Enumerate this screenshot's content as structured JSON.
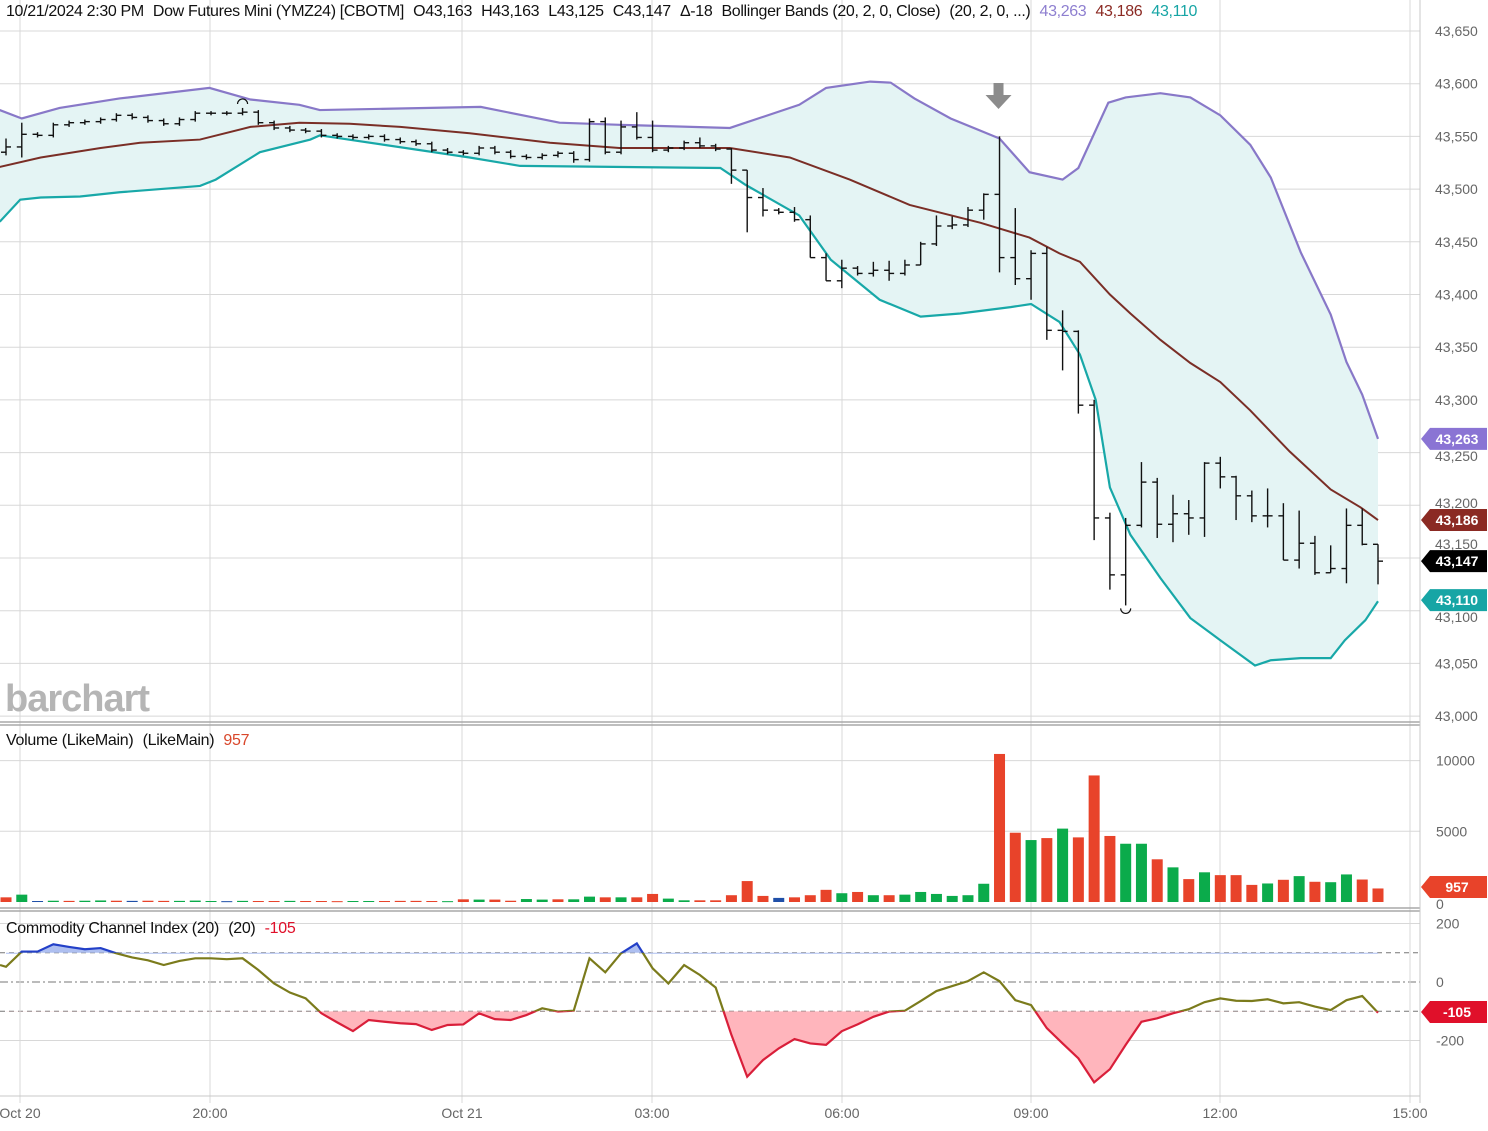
{
  "header": {
    "datetime": "10/21/2024 2:30 PM",
    "instrument": "Dow Futures Mini (YMZ24) [CBOTM]",
    "open": "O43,163",
    "high": "H43,163",
    "low": "L43,125",
    "close": "C43,147",
    "change": "Δ-18",
    "study": "Bollinger Bands (20, 2, 0, Close)",
    "study_params": "(20, 2, 0, ...)",
    "upper_value": "43,263",
    "middle_value": "43,186",
    "lower_value": "43,110"
  },
  "watermark": "barchart",
  "volume_pane": {
    "title": "Volume (LikeMain)",
    "params": "(LikeMain)",
    "value": "957"
  },
  "cci_pane": {
    "title": "Commodity Channel Index (20)",
    "params": "(20)",
    "value": "-105"
  },
  "colors": {
    "upper_band": "#8878c8",
    "middle_band": "#7a2e26",
    "lower_band": "#18a8a8",
    "band_fill": "#e4f4f4",
    "bars": "#111111",
    "volume_up": "#0bab4b",
    "volume_down": "#e8432a",
    "volume_unchanged": "#1f4fa8",
    "cci_line": "#7b7b1c",
    "cci_overbought": "#2340c8",
    "cci_oversold": "#d91f3a",
    "cci_oversold_fill": "#ffb5bc",
    "cci_overbought_fill": "#aebff0"
  },
  "chart_data": [
    {
      "type": "ohlc",
      "title": "Dow Futures Mini (YMZ24) [CBOTM]",
      "interval": "15 min",
      "ylim": [
        43000,
        43650
      ],
      "y_ticks": [
        "43,000",
        "43,050",
        "43,100",
        "43,150",
        "43,200",
        "43,250",
        "43,300",
        "43,350",
        "43,400",
        "43,450",
        "43,500",
        "43,550",
        "43,600",
        "43,650"
      ],
      "x_ticks": [
        "Oct 20",
        "20:00",
        "Oct 21",
        "03:00",
        "06:00",
        "09:00",
        "12:00",
        "15:00"
      ],
      "grid": true,
      "close": [
        43540,
        43552,
        43551,
        43561,
        43563,
        43564,
        43566,
        43570,
        43568,
        43565,
        43562,
        43566,
        43572,
        43572,
        43572,
        43573,
        43563,
        43558,
        43556,
        43555,
        43551,
        43550,
        43549,
        43550,
        43547,
        43545,
        43543,
        43537,
        43535,
        43534,
        43539,
        43535,
        43531,
        43530,
        43532,
        43534,
        43528,
        43564,
        43535,
        43559,
        43549,
        43537,
        43539,
        43544,
        43541,
        43538,
        43518,
        43492,
        43480,
        43478,
        43471,
        43435,
        43413,
        43425,
        43420,
        43423,
        43420,
        43428,
        43448,
        43465,
        43466,
        43480,
        43495,
        43435,
        43415,
        43439,
        43366,
        43365,
        43295,
        43188,
        43134,
        43181,
        43222,
        43182,
        43192,
        43188,
        43240,
        43227,
        43209,
        43190,
        43190,
        43148,
        43164,
        43136,
        43140,
        43181,
        43163,
        43147
      ],
      "first_open": 43535,
      "high": {
        "0": 43548,
        "1": 43563,
        "15": 43577,
        "37": 43567,
        "38": 43568,
        "39": 43565,
        "40": 43573,
        "41": 43565,
        "44": 43549,
        "46": 43539,
        "47": 43518,
        "48": 43501,
        "49": 43482,
        "50": 43483,
        "51": 43475,
        "52": 43439,
        "53": 43433,
        "55": 43431,
        "56": 43432,
        "57": 43433,
        "58": 43450,
        "59": 43475,
        "60": 43474,
        "61": 43483,
        "62": 43496,
        "63": 43550,
        "64": 43482,
        "65": 43442,
        "66": 43445,
        "67": 43385,
        "68": 43366,
        "69": 43300,
        "70": 43193,
        "71": 43188,
        "72": 43241,
        "73": 43226,
        "74": 43210,
        "75": 43205,
        "76": 43241,
        "77": 43246,
        "78": 43228,
        "79": 43214,
        "80": 43216,
        "81": 43202,
        "82": 43195,
        "83": 43171,
        "84": 43162,
        "85": 43197,
        "86": 43197,
        "87": 43163
      },
      "low": {
        "0": 43532,
        "1": 43530,
        "36": 43525,
        "37": 43526,
        "38": 43533,
        "46": 43505,
        "47": 43459,
        "48": 43474,
        "51": 43435,
        "52": 43413,
        "53": 43406,
        "55": 43417,
        "56": 43413,
        "58": 43428,
        "60": 43462,
        "62": 43471,
        "63": 43421,
        "64": 43409,
        "65": 43395,
        "66": 43357,
        "67": 43328,
        "68": 43287,
        "69": 43167,
        "70": 43120,
        "71": 43105,
        "73": 43169,
        "74": 43165,
        "75": 43172,
        "76": 43170,
        "77": 43216,
        "78": 43186,
        "79": 43184,
        "80": 43179,
        "81": 43148,
        "82": 43140,
        "83": 43134,
        "84": 43136,
        "85": 43126,
        "86": 43162,
        "87": 43125
      },
      "session_high_bar": 15,
      "session_low_bar": 71,
      "signal_arrow_bar": 63,
      "bollinger": {
        "name": "Bollinger Bands (20, 2, 0, Close)",
        "upper": [
          [
            -0.4,
            43575
          ],
          [
            1,
            43567
          ],
          [
            3.4,
            43577
          ],
          [
            7.2,
            43586
          ],
          [
            12.9,
            43596
          ],
          [
            15.5,
            43585
          ],
          [
            18.6,
            43580
          ],
          [
            19.9,
            43575
          ],
          [
            30.1,
            43578
          ],
          [
            35.1,
            43563
          ],
          [
            38.9,
            43561
          ],
          [
            45.9,
            43558
          ],
          [
            50.3,
            43580
          ],
          [
            52,
            43596
          ],
          [
            54.8,
            43602
          ],
          [
            56.1,
            43601
          ],
          [
            57.6,
            43586
          ],
          [
            59.9,
            43567
          ],
          [
            63,
            43548
          ],
          [
            64.9,
            43516
          ],
          [
            67,
            43509
          ],
          [
            68,
            43520
          ],
          [
            69.9,
            43582
          ],
          [
            71,
            43587
          ],
          [
            73.2,
            43591
          ],
          [
            75.1,
            43587
          ],
          [
            77,
            43570
          ],
          [
            78.9,
            43542
          ],
          [
            80.2,
            43511
          ],
          [
            82.1,
            43440
          ],
          [
            84,
            43381
          ],
          [
            85,
            43336
          ],
          [
            86,
            43305
          ],
          [
            87,
            43263
          ]
        ],
        "middle": [
          [
            -0.4,
            43521
          ],
          [
            2.2,
            43530
          ],
          [
            6,
            43539
          ],
          [
            8.5,
            43544
          ],
          [
            12.3,
            43547
          ],
          [
            15.5,
            43559
          ],
          [
            18.6,
            43563
          ],
          [
            21.8,
            43562
          ],
          [
            25,
            43559
          ],
          [
            29.4,
            43553
          ],
          [
            34.5,
            43544
          ],
          [
            38.9,
            43539
          ],
          [
            45.9,
            43539
          ],
          [
            49.7,
            43530
          ],
          [
            53.5,
            43509
          ],
          [
            57.3,
            43485
          ],
          [
            61.8,
            43468
          ],
          [
            64.9,
            43454
          ],
          [
            66.8,
            43439
          ],
          [
            68.1,
            43431
          ],
          [
            70,
            43400
          ],
          [
            71.3,
            43382
          ],
          [
            73.2,
            43357
          ],
          [
            75.1,
            43335
          ],
          [
            77,
            43317
          ],
          [
            78.9,
            43290
          ],
          [
            81.4,
            43251
          ],
          [
            84,
            43215
          ],
          [
            85.9,
            43198
          ],
          [
            87,
            43186
          ]
        ],
        "lower": [
          [
            -0.4,
            43469
          ],
          [
            0.9,
            43490
          ],
          [
            2.2,
            43492
          ],
          [
            4.7,
            43493
          ],
          [
            7.2,
            43497
          ],
          [
            12.3,
            43503
          ],
          [
            13.3,
            43509
          ],
          [
            16.1,
            43535
          ],
          [
            19.3,
            43547
          ],
          [
            19.9,
            43551
          ],
          [
            29.4,
            43530
          ],
          [
            32.6,
            43522
          ],
          [
            45.3,
            43520
          ],
          [
            46.9,
            43504
          ],
          [
            50.3,
            43475
          ],
          [
            52.3,
            43433
          ],
          [
            55.4,
            43395
          ],
          [
            58,
            43379
          ],
          [
            60.5,
            43382
          ],
          [
            63.7,
            43388
          ],
          [
            65,
            43391
          ],
          [
            66.8,
            43374
          ],
          [
            68.1,
            43343
          ],
          [
            69.1,
            43300
          ],
          [
            70,
            43217
          ],
          [
            71.3,
            43172
          ],
          [
            73.2,
            43131
          ],
          [
            75.1,
            43093
          ],
          [
            77,
            43072
          ],
          [
            79.2,
            43048
          ],
          [
            80.2,
            43053
          ],
          [
            82.1,
            43055
          ],
          [
            84,
            43055
          ],
          [
            84.9,
            43072
          ],
          [
            86.2,
            43091
          ],
          [
            87,
            43109
          ]
        ]
      },
      "last_labels": [
        {
          "text": "43,263",
          "value": 43263,
          "color": "#8a74d4"
        },
        {
          "text": "43,186",
          "value": 43186,
          "color": "#8b2a23"
        },
        {
          "text": "43,147",
          "value": 43147,
          "color": "#000000"
        },
        {
          "text": "43,110",
          "value": 43110,
          "color": "#17a5a5"
        }
      ]
    },
    {
      "type": "bar",
      "title": "Volume (LikeMain)",
      "ylim": [
        0,
        10500
      ],
      "y_ticks": [
        "10000",
        "5000",
        "0"
      ],
      "values": [
        330,
        520,
        70,
        90,
        80,
        90,
        110,
        90,
        80,
        90,
        80,
        80,
        100,
        70,
        60,
        80,
        70,
        70,
        80,
        70,
        70,
        60,
        70,
        70,
        70,
        80,
        80,
        70,
        60,
        190,
        170,
        170,
        90,
        210,
        170,
        190,
        190,
        380,
        330,
        330,
        330,
        570,
        240,
        120,
        120,
        120,
        480,
        1480,
        430,
        290,
        330,
        480,
        860,
        620,
        710,
        480,
        480,
        520,
        710,
        570,
        430,
        480,
        1290,
        10470,
        4900,
        4380,
        4520,
        5190,
        4570,
        8950,
        4670,
        4120,
        4120,
        3020,
        2450,
        1620,
        2100,
        1900,
        1900,
        1210,
        1310,
        1570,
        1830,
        1430,
        1400,
        1950,
        1590,
        957
      ],
      "direction": [
        "d",
        "u",
        "n",
        "u",
        "d",
        "u",
        "u",
        "d",
        "n",
        "d",
        "d",
        "u",
        "u",
        "u",
        "n",
        "u",
        "d",
        "d",
        "u",
        "d",
        "d",
        "d",
        "u",
        "u",
        "d",
        "d",
        "d",
        "d",
        "u",
        "d",
        "u",
        "d",
        "d",
        "u",
        "u",
        "d",
        "u",
        "u",
        "d",
        "u",
        "d",
        "d",
        "u",
        "u",
        "d",
        "d",
        "d",
        "d",
        "d",
        "n",
        "d",
        "d",
        "d",
        "u",
        "d",
        "u",
        "d",
        "u",
        "u",
        "u",
        "u",
        "u",
        "u",
        "d",
        "d",
        "u",
        "d",
        "u",
        "d",
        "d",
        "d",
        "u",
        "u",
        "d",
        "u",
        "d",
        "u",
        "d",
        "d",
        "d",
        "u",
        "d",
        "u",
        "d",
        "u",
        "u",
        "d",
        "d"
      ],
      "last_label": {
        "text": "957",
        "color": "#e8432a"
      }
    },
    {
      "type": "line",
      "title": "Commodity Channel Index (20)",
      "ylim": [
        -200,
        200
      ],
      "y_ticks": [
        "200",
        "0",
        "-200"
      ],
      "levels": [
        100,
        0,
        -100
      ],
      "values": [
        52,
        104,
        104,
        129,
        120,
        112,
        116,
        98,
        84,
        74,
        58,
        72,
        81,
        81,
        78,
        81,
        41,
        -5,
        -36,
        -56,
        -107,
        -138,
        -168,
        -130,
        -136,
        -141,
        -144,
        -164,
        -147,
        -145,
        -107,
        -127,
        -130,
        -113,
        -90,
        -101,
        -98,
        81,
        33,
        98,
        132,
        47,
        -5,
        58,
        24,
        -19,
        -181,
        -324,
        -267,
        -227,
        -195,
        -210,
        -215,
        -168,
        -145,
        -119,
        -101,
        -98,
        -65,
        -31,
        -14,
        3,
        33,
        3,
        -62,
        -79,
        -158,
        -210,
        -261,
        -343,
        -298,
        -215,
        -136,
        -124,
        -107,
        -93,
        -69,
        -56,
        -64,
        -65,
        -59,
        -73,
        -69,
        -84,
        -96,
        -62,
        -48,
        -105
      ],
      "last_label": {
        "text": "-105",
        "color": "#e0102a"
      }
    }
  ]
}
